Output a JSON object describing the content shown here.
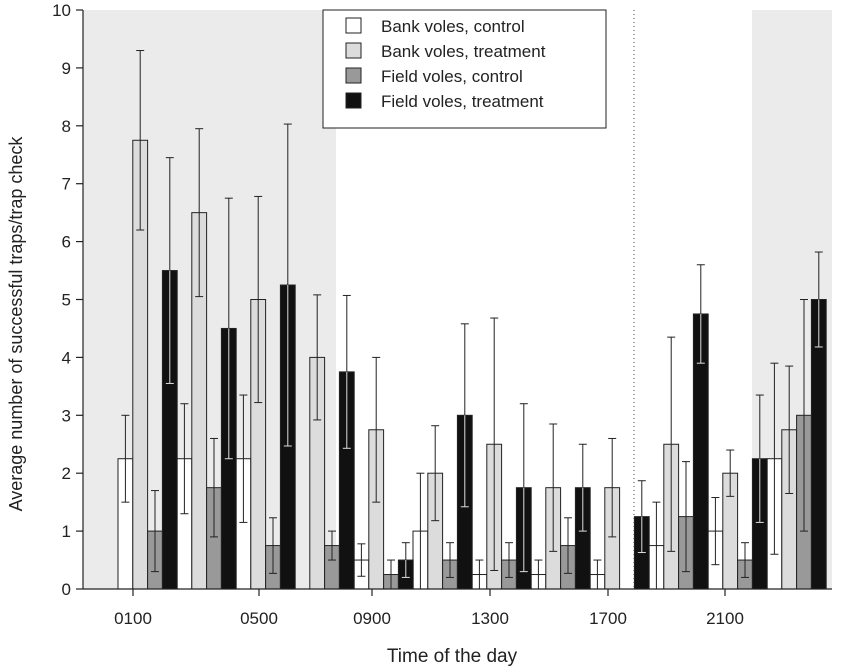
{
  "chart_data": {
    "type": "bar",
    "title": "",
    "xlabel": "Time of the day",
    "ylabel": "Average number of successful traps/trap check",
    "ylim": [
      0,
      10
    ],
    "yticks": [
      0,
      1,
      2,
      3,
      4,
      5,
      6,
      7,
      8,
      9,
      10
    ],
    "xtick_labels": [
      "0100",
      "0500",
      "0900",
      "1300",
      "1700",
      "2100"
    ],
    "categories": [
      "0100",
      "0300",
      "0500",
      "0700",
      "0900",
      "1100",
      "1300",
      "1500",
      "1700",
      "1900",
      "2100",
      "2300"
    ],
    "grid": false,
    "legend_position": "top-center",
    "night_shading": "light grey background over night-time hours (0100–0700 and 2300)",
    "series": [
      {
        "name": "Bank voles, control",
        "color": "#ffffff",
        "values": [
          2.25,
          2.25,
          2.25,
          0,
          0.5,
          1.0,
          0.25,
          0.25,
          0.25,
          0.75,
          1.0,
          2.25
        ],
        "errors": [
          0.75,
          0.95,
          1.1,
          0,
          0.28,
          1.0,
          0.25,
          0.25,
          0.25,
          0.75,
          0.58,
          1.65
        ]
      },
      {
        "name": "Bank voles, treatment",
        "color": "#dcdcdc",
        "values": [
          7.75,
          6.5,
          5.0,
          4.0,
          2.75,
          2.0,
          2.5,
          1.75,
          1.75,
          2.5,
          2.0,
          2.75
        ],
        "errors": [
          1.55,
          1.45,
          1.78,
          1.08,
          1.25,
          0.82,
          2.18,
          1.1,
          0.85,
          1.85,
          0.4,
          1.1
        ]
      },
      {
        "name": "Field voles, control",
        "color": "#999999",
        "values": [
          1.0,
          1.75,
          0.75,
          0.75,
          0.25,
          0.5,
          0.5,
          0.75,
          0,
          1.25,
          0.5,
          3.0
        ],
        "errors": [
          0.7,
          0.85,
          0.48,
          0.25,
          0.25,
          0.3,
          0.3,
          0.48,
          0,
          0.95,
          0.3,
          2.0
        ]
      },
      {
        "name": "Field voles, treatment",
        "color": "#111111",
        "values": [
          5.5,
          4.5,
          5.25,
          3.75,
          0.5,
          3.0,
          1.75,
          1.75,
          1.25,
          4.75,
          2.25,
          5.0
        ],
        "errors": [
          1.95,
          2.25,
          2.78,
          1.32,
          0.3,
          1.58,
          1.45,
          0.75,
          0.62,
          0.85,
          1.1,
          0.82
        ]
      }
    ],
    "annotations": [
      "dotted vertical line between 1700 and 1900"
    ]
  }
}
